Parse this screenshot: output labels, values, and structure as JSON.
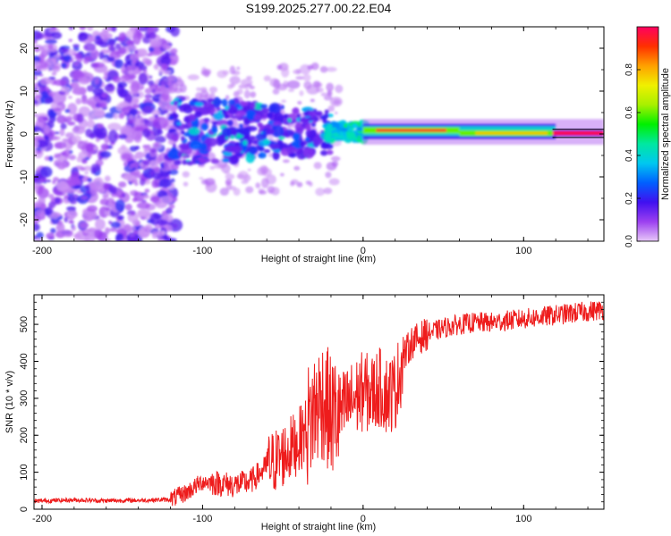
{
  "page_title": "S199.2025.277.00.22.E04",
  "chart_data": [
    {
      "type": "heatmap",
      "title": "S199.2025.277.00.22.E04",
      "xlabel": "Height of straight line (km)",
      "ylabel": "Frequency (Hz)",
      "xlim": [
        -205,
        150
      ],
      "ylim": [
        -25,
        25
      ],
      "x_ticks": [
        -200,
        -100,
        0,
        100
      ],
      "x_tick_labels": [
        "-200",
        "-100",
        "0",
        "100"
      ],
      "y_ticks": [
        20,
        10,
        0,
        -10,
        -20
      ],
      "y_tick_labels": [
        "20",
        "10",
        "0",
        "-10",
        "-20"
      ],
      "colorbar": {
        "label": "Normalized spectral amplitude",
        "range": [
          0,
          1
        ],
        "ticks": [
          0.0,
          0.2,
          0.4,
          0.6,
          0.8
        ],
        "tick_labels": [
          "0.0",
          "0.2",
          "0.4",
          "0.6",
          "0.8"
        ],
        "colors": [
          "#e8c8f8",
          "#9c40f0",
          "#4010f0",
          "#0060ff",
          "#00c8f0",
          "#00e8a0",
          "#00f000",
          "#a8f000",
          "#f0f000",
          "#ffa000",
          "#ff3000",
          "#ff0060"
        ]
      },
      "regions": [
        {
          "x_range": [
            -205,
            -120
          ],
          "f_range": [
            -25,
            25
          ],
          "amplitude": 0.15,
          "description": "noise"
        },
        {
          "x_range": [
            -120,
            -20
          ],
          "f_range": [
            -10,
            10
          ],
          "amplitude": 0.25
        },
        {
          "x_range": [
            -20,
            0
          ],
          "f_range": [
            -2,
            3
          ],
          "amplitude": 0.45
        },
        {
          "x_range": [
            0,
            60
          ],
          "f_range": [
            0,
            2
          ],
          "amplitude": 0.95
        },
        {
          "x_range": [
            60,
            120
          ],
          "f_range": [
            -1,
            1
          ],
          "amplitude": 0.7
        },
        {
          "x_range": [
            120,
            150
          ],
          "f_range": [
            -0.5,
            1
          ],
          "amplitude": 0.98
        }
      ]
    },
    {
      "type": "line",
      "xlabel": "Height of straight line (km)",
      "ylabel": "SNR (10 * v/v)",
      "xlim": [
        -205,
        150
      ],
      "ylim": [
        0,
        580
      ],
      "x_ticks": [
        -200,
        -100,
        0,
        100
      ],
      "x_tick_labels": [
        "-200",
        "-100",
        "0",
        "100"
      ],
      "y_ticks": [
        0,
        100,
        200,
        300,
        400,
        500
      ],
      "y_tick_labels": [
        "0",
        "100",
        "200",
        "300",
        "400",
        "500"
      ],
      "line_color": "#ee1c1c",
      "series": [
        {
          "name": "SNR",
          "x": [
            -205,
            -180,
            -160,
            -140,
            -120,
            -110,
            -100,
            -90,
            -80,
            -70,
            -60,
            -50,
            -40,
            -35,
            -30,
            -25,
            -20,
            -15,
            -10,
            -5,
            0,
            5,
            10,
            15,
            20,
            25,
            30,
            40,
            50,
            60,
            70,
            80,
            90,
            100,
            110,
            120,
            130,
            140,
            150
          ],
          "y": [
            22,
            25,
            23,
            24,
            26,
            45,
            75,
            70,
            65,
            75,
            115,
            145,
            185,
            220,
            270,
            300,
            250,
            255,
            280,
            300,
            320,
            310,
            330,
            310,
            320,
            410,
            450,
            475,
            490,
            500,
            505,
            505,
            510,
            515,
            520,
            525,
            530,
            535,
            540
          ]
        }
      ]
    }
  ]
}
